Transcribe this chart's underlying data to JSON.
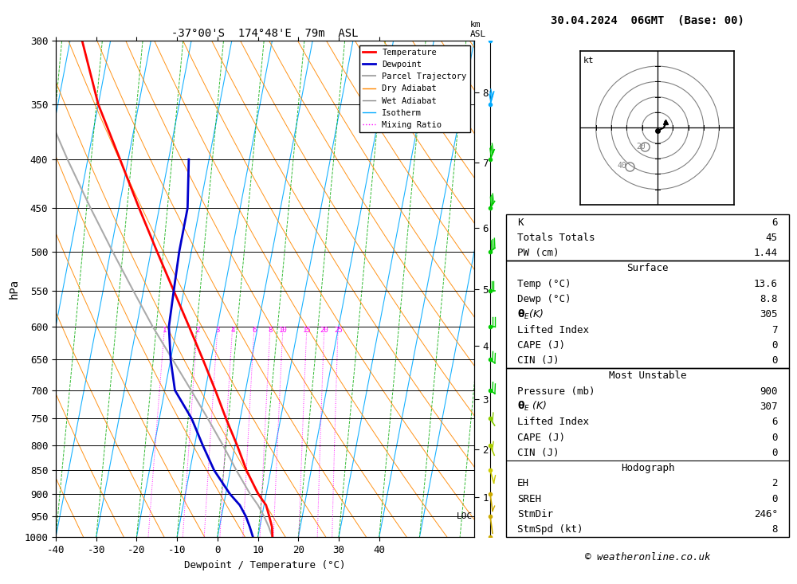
{
  "title_left": "-37°00'S  174°48'E  79m  ASL",
  "title_right": "30.04.2024  06GMT  (Base: 00)",
  "xlabel": "Dewpoint / Temperature (°C)",
  "ylabel_left": "hPa",
  "pressure_levels": [
    300,
    350,
    400,
    450,
    500,
    550,
    600,
    650,
    700,
    750,
    800,
    850,
    900,
    950,
    1000
  ],
  "temp_profile": {
    "pressure": [
      1000,
      975,
      950,
      925,
      900,
      850,
      800,
      750,
      700,
      650,
      600,
      550,
      500,
      450,
      400,
      350,
      300
    ],
    "temp": [
      13.6,
      13.0,
      11.8,
      10.5,
      8.0,
      4.0,
      0.5,
      -3.5,
      -7.5,
      -12.0,
      -17.0,
      -22.5,
      -28.5,
      -35.0,
      -42.0,
      -50.0,
      -57.0
    ]
  },
  "dewp_profile": {
    "pressure": [
      1000,
      975,
      950,
      925,
      900,
      850,
      800,
      750,
      700,
      650,
      600,
      550,
      500,
      475,
      450,
      400
    ],
    "temp": [
      8.8,
      7.5,
      6.0,
      4.0,
      1.0,
      -4.0,
      -8.0,
      -12.0,
      -17.5,
      -20.0,
      -22.0,
      -22.5,
      -23.0,
      -23.0,
      -23.0,
      -25.0
    ]
  },
  "parcel_profile": {
    "pressure": [
      1000,
      975,
      950,
      925,
      900,
      850,
      800,
      750,
      700,
      650,
      600,
      550,
      500,
      450,
      400,
      350,
      300
    ],
    "temp": [
      13.6,
      12.2,
      10.5,
      8.5,
      6.0,
      1.5,
      -3.0,
      -8.0,
      -13.5,
      -19.5,
      -26.0,
      -32.5,
      -39.5,
      -47.0,
      -55.0,
      -63.5,
      -72.0
    ]
  },
  "temp_color": "#ff0000",
  "dewp_color": "#0000cc",
  "parcel_color": "#aaaaaa",
  "dry_adiabat_color": "#ff8800",
  "wet_adiabat_color": "#888888",
  "isotherm_color": "#00aaff",
  "mixing_ratio_color": "#ff00ff",
  "green_dash_color": "#00aa00",
  "mixing_ratio_values": [
    1,
    2,
    3,
    4,
    6,
    8,
    10,
    15,
    20,
    25
  ],
  "km_ticks": [
    1,
    2,
    3,
    4,
    5,
    6,
    7,
    8
  ],
  "km_pressures": [
    907,
    808,
    715,
    628,
    548,
    472,
    403,
    340
  ],
  "surface_data": {
    "K": 6,
    "Totals_Totals": 45,
    "PW_cm": 1.44,
    "Temp_C": 13.6,
    "Dewp_C": 8.8,
    "theta_e_K": 305,
    "Lifted_Index": 7,
    "CAPE_J": 0,
    "CIN_J": 0
  },
  "most_unstable": {
    "Pressure_mb": 900,
    "theta_e_K": 307,
    "Lifted_Index": 6,
    "CAPE_J": 0,
    "CIN_J": 0
  },
  "hodograph": {
    "EH": 2,
    "SREH": 0,
    "StmDir": 246,
    "StmSpd_kt": 8
  },
  "copyright": "© weatheronline.co.uk",
  "T_min": -40,
  "T_max": 40,
  "p_min": 300,
  "p_max": 1000,
  "skew": 45.0,
  "background_color": "#ffffff",
  "wind_barb_pressures": [
    300,
    350,
    400,
    450,
    500,
    550,
    600,
    650,
    700,
    750,
    800,
    850,
    900,
    950,
    1000
  ],
  "wind_speeds_kt": [
    50,
    45,
    40,
    35,
    30,
    25,
    20,
    20,
    20,
    15,
    15,
    10,
    10,
    5,
    5
  ],
  "wind_dirs_deg": [
    320,
    310,
    300,
    290,
    280,
    270,
    270,
    260,
    260,
    250,
    240,
    230,
    210,
    210,
    200
  ]
}
